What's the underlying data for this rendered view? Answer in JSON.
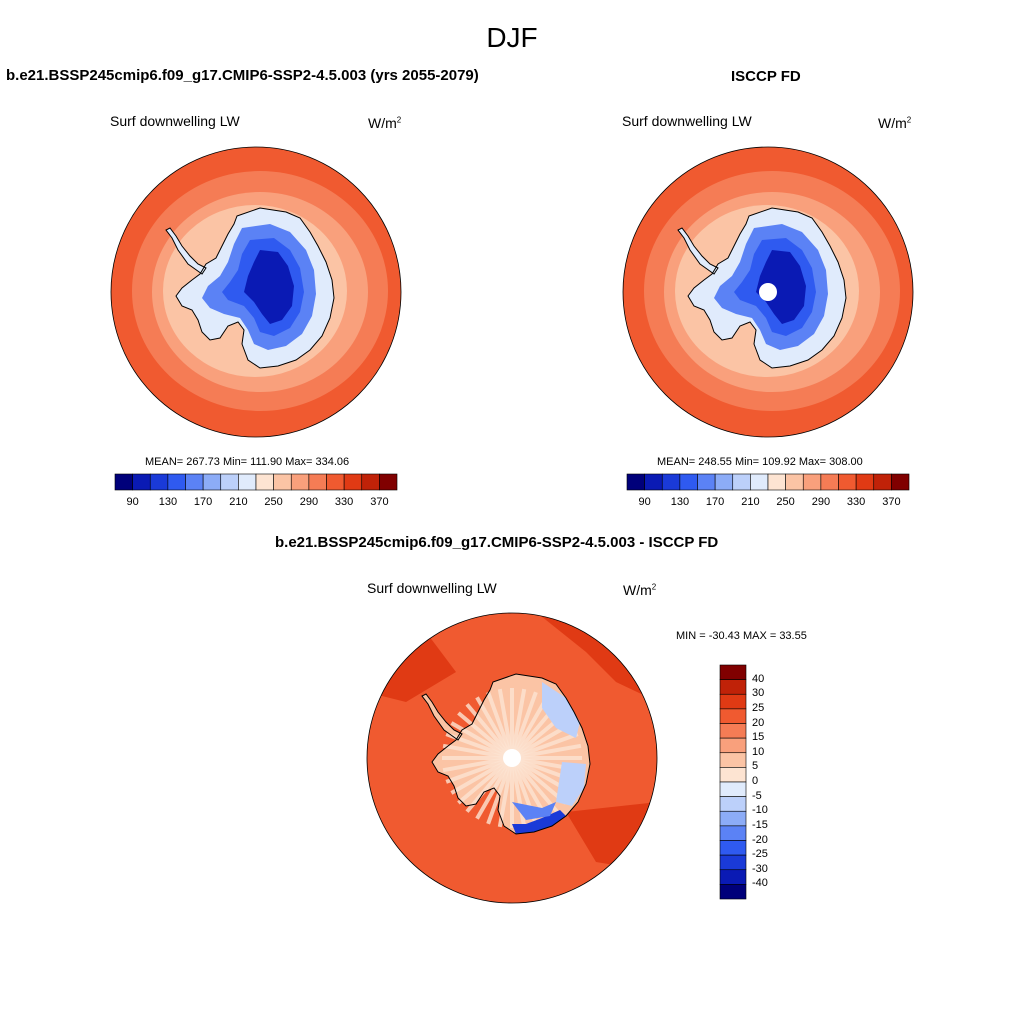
{
  "title": "DJF",
  "panels": [
    {
      "id": "model",
      "heading": "b.e21.BSSP245cmip6.f09_g17.CMIP6-SSP2-4.5.003 (yrs 2055-2079)",
      "variable": "Surf downwelling LW",
      "units": "W/m",
      "units_sup": "2",
      "stats": "MEAN= 267.73  Min= 111.90  Max= 334.06"
    },
    {
      "id": "obs",
      "heading": "ISCCP FD",
      "variable": "Surf downwelling LW",
      "units": "W/m",
      "units_sup": "2",
      "stats": "MEAN= 248.55  Min= 109.92  Max= 308.00"
    },
    {
      "id": "diff",
      "heading": "b.e21.BSSP245cmip6.f09_g17.CMIP6-SSP2-4.5.003 - ISCCP FD",
      "variable": "Surf downwelling LW",
      "units": "W/m",
      "units_sup": "2",
      "stats": "MIN = -30.43 MAX =  33.55"
    }
  ],
  "abs_colorbar": {
    "colors": [
      "#00007a",
      "#0a1ab4",
      "#1a3ad8",
      "#2f5af0",
      "#5b82f5",
      "#8cacf7",
      "#bcd0fa",
      "#e0ebfc",
      "#fde4d2",
      "#fbc4a5",
      "#f9a07c",
      "#f57c55",
      "#f05a30",
      "#e03a14",
      "#c02208",
      "#800000"
    ],
    "labels": [
      "90",
      "130",
      "170",
      "210",
      "250",
      "290",
      "330",
      "370"
    ]
  },
  "diff_colorbar": {
    "colors": [
      "#00007a",
      "#0a1ab4",
      "#1a3ad8",
      "#2f5af0",
      "#5b82f5",
      "#8cacf7",
      "#bcd0fa",
      "#e0ebfc",
      "#fde4d2",
      "#fbc4a5",
      "#f9a07c",
      "#f57c55",
      "#f05a30",
      "#e03a14",
      "#c02208",
      "#800000"
    ],
    "labels": [
      "40",
      "30",
      "25",
      "20",
      "15",
      "10",
      "5",
      "0",
      "-5",
      "-10",
      "-15",
      "-20",
      "-25",
      "-30",
      "-40"
    ]
  },
  "map_colors": {
    "ocean_far": "#f05a30",
    "ocean_mid": "#f57c55",
    "ocean_near": "#f9a07c",
    "coast_ring": "#fbc4a5",
    "ice_edge": "#e0ebfc",
    "ice_1": "#bcd0fa",
    "ice_2": "#5b82f5",
    "ice_3": "#2f5af0",
    "ice_core": "#0a1ab4",
    "diff_ocean": "#f05a30",
    "diff_ocean_hi": "#e03a14",
    "diff_land": "#fbc4a5",
    "diff_land_light": "#fde4d2",
    "diff_blue_1": "#bcd0fa",
    "diff_blue_2": "#5b82f5",
    "diff_blue_3": "#1a3ad8"
  }
}
